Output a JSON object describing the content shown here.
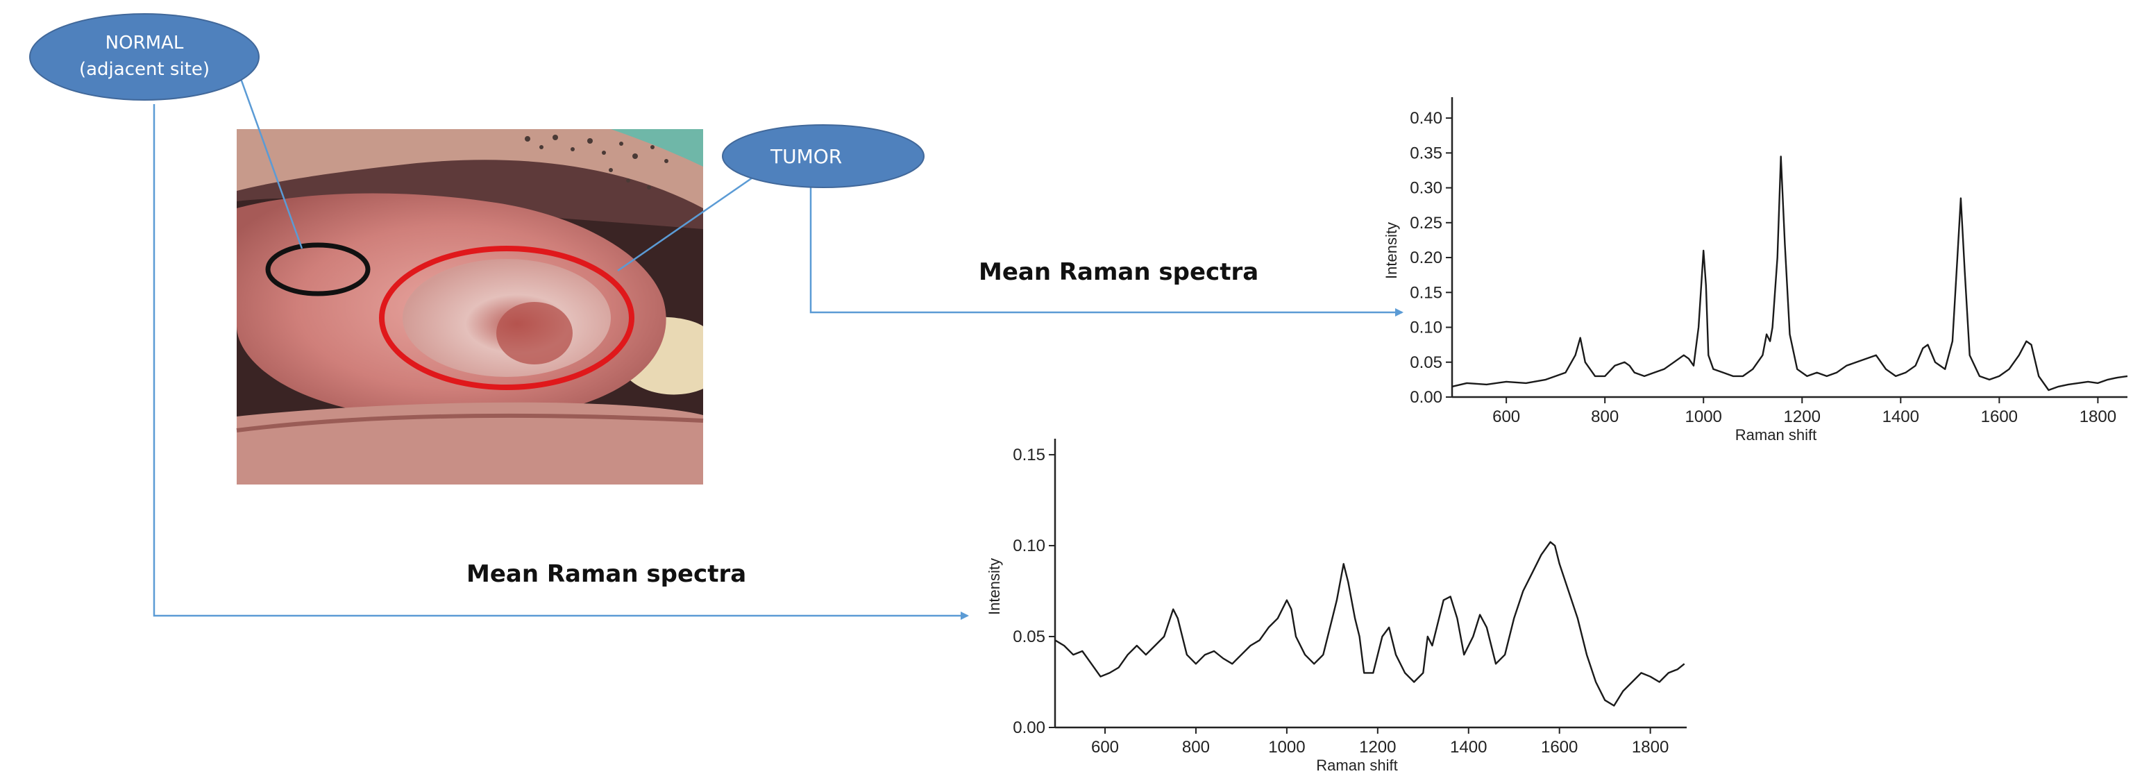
{
  "labels": {
    "normal_line1": "NORMAL",
    "normal_line2": "(adjacent site)",
    "tumor": "TUMOR"
  },
  "captions": {
    "tumor_spectra": "Mean Raman spectra",
    "normal_spectra": "Mean Raman spectra"
  },
  "colors": {
    "bubble_fill": "#4f81bd",
    "connector": "#5b9bd5",
    "tumor_marker": "#e0181b",
    "normal_marker": "#111111",
    "spectrum_line": "#1a1a1a"
  },
  "photo": {
    "description_icon": "oral-lesion-photo"
  },
  "chart_data": [
    {
      "id": "tumor",
      "type": "line",
      "title": "",
      "xlabel": "Raman shift",
      "ylabel": "Intensity",
      "xlim": [
        490,
        1860
      ],
      "ylim": [
        0,
        0.42
      ],
      "xticks": [
        600,
        800,
        1000,
        1200,
        1400,
        1600,
        1800
      ],
      "yticks": [
        0.0,
        0.05,
        0.1,
        0.15,
        0.2,
        0.25,
        0.3,
        0.35,
        0.4
      ],
      "ytick_labels": [
        "0.00",
        "0.05",
        "0.10",
        "0.15",
        "0.20",
        "0.25",
        "0.30",
        "0.35",
        "0.40"
      ],
      "x": [
        490,
        520,
        560,
        600,
        640,
        680,
        700,
        720,
        740,
        750,
        760,
        780,
        800,
        820,
        840,
        850,
        860,
        880,
        900,
        920,
        940,
        960,
        970,
        980,
        990,
        1000,
        1005,
        1010,
        1020,
        1040,
        1060,
        1080,
        1100,
        1120,
        1128,
        1135,
        1140,
        1150,
        1157,
        1165,
        1175,
        1190,
        1210,
        1230,
        1250,
        1270,
        1290,
        1310,
        1330,
        1350,
        1370,
        1390,
        1410,
        1430,
        1445,
        1455,
        1470,
        1490,
        1505,
        1515,
        1522,
        1530,
        1540,
        1560,
        1580,
        1600,
        1620,
        1640,
        1655,
        1665,
        1680,
        1700,
        1720,
        1740,
        1760,
        1780,
        1800,
        1820,
        1840,
        1860
      ],
      "values": [
        0.015,
        0.02,
        0.018,
        0.022,
        0.02,
        0.025,
        0.03,
        0.035,
        0.06,
        0.085,
        0.05,
        0.03,
        0.03,
        0.045,
        0.05,
        0.045,
        0.035,
        0.03,
        0.035,
        0.04,
        0.05,
        0.06,
        0.055,
        0.045,
        0.1,
        0.21,
        0.16,
        0.06,
        0.04,
        0.035,
        0.03,
        0.03,
        0.04,
        0.06,
        0.09,
        0.08,
        0.1,
        0.2,
        0.345,
        0.22,
        0.09,
        0.04,
        0.03,
        0.035,
        0.03,
        0.035,
        0.045,
        0.05,
        0.055,
        0.06,
        0.04,
        0.03,
        0.035,
        0.045,
        0.07,
        0.075,
        0.05,
        0.04,
        0.08,
        0.2,
        0.285,
        0.18,
        0.06,
        0.03,
        0.025,
        0.03,
        0.04,
        0.06,
        0.08,
        0.075,
        0.03,
        0.01,
        0.015,
        0.018,
        0.02,
        0.022,
        0.02,
        0.025,
        0.028,
        0.03
      ]
    },
    {
      "id": "normal",
      "type": "line",
      "title": "",
      "xlabel": "Raman shift",
      "ylabel": "Intensity",
      "xlim": [
        490,
        1880
      ],
      "ylim": [
        0,
        0.155
      ],
      "xticks": [
        600,
        800,
        1000,
        1200,
        1400,
        1600,
        1800
      ],
      "yticks": [
        0.0,
        0.05,
        0.1,
        0.15
      ],
      "ytick_labels": [
        "0.00",
        "0.05",
        "0.10",
        "0.15"
      ],
      "x": [
        490,
        510,
        530,
        550,
        570,
        590,
        610,
        630,
        650,
        670,
        690,
        710,
        730,
        750,
        760,
        780,
        800,
        820,
        840,
        860,
        880,
        900,
        920,
        940,
        960,
        980,
        1000,
        1010,
        1020,
        1040,
        1060,
        1080,
        1100,
        1110,
        1125,
        1135,
        1150,
        1160,
        1170,
        1190,
        1210,
        1225,
        1240,
        1260,
        1280,
        1300,
        1310,
        1320,
        1330,
        1345,
        1360,
        1375,
        1390,
        1410,
        1425,
        1440,
        1460,
        1480,
        1500,
        1520,
        1540,
        1560,
        1580,
        1590,
        1600,
        1620,
        1640,
        1660,
        1680,
        1700,
        1720,
        1740,
        1760,
        1780,
        1800,
        1820,
        1840,
        1860,
        1875
      ],
      "values": [
        0.048,
        0.045,
        0.04,
        0.042,
        0.035,
        0.028,
        0.03,
        0.033,
        0.04,
        0.045,
        0.04,
        0.045,
        0.05,
        0.065,
        0.06,
        0.04,
        0.035,
        0.04,
        0.042,
        0.038,
        0.035,
        0.04,
        0.045,
        0.048,
        0.055,
        0.06,
        0.07,
        0.065,
        0.05,
        0.04,
        0.035,
        0.04,
        0.06,
        0.07,
        0.09,
        0.08,
        0.06,
        0.05,
        0.03,
        0.03,
        0.05,
        0.055,
        0.04,
        0.03,
        0.025,
        0.03,
        0.05,
        0.045,
        0.055,
        0.07,
        0.072,
        0.06,
        0.04,
        0.05,
        0.062,
        0.055,
        0.035,
        0.04,
        0.06,
        0.075,
        0.085,
        0.095,
        0.102,
        0.1,
        0.09,
        0.075,
        0.06,
        0.04,
        0.025,
        0.015,
        0.012,
        0.02,
        0.025,
        0.03,
        0.028,
        0.025,
        0.03,
        0.032,
        0.035
      ]
    }
  ]
}
